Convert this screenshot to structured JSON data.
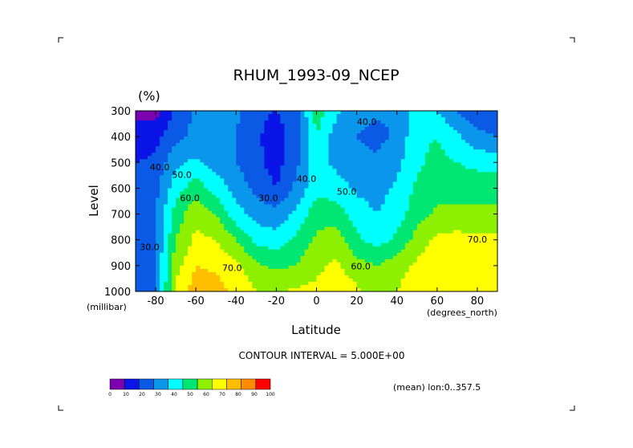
{
  "chart_data": {
    "type": "heatmap",
    "subtype": "filled-contour",
    "title": "RHUM_1993-09_NCEP",
    "units": "(%)",
    "xlabel": "Latitude",
    "x_units": "(degrees_north)",
    "ylabel": "Level",
    "y_units": "(millibar)",
    "xlim": [
      -90,
      90
    ],
    "ylim": [
      300,
      1000
    ],
    "y_inverted": true,
    "x_ticks": [
      -80,
      -60,
      -40,
      -20,
      0,
      20,
      40,
      60,
      80
    ],
    "y_ticks": [
      300,
      400,
      500,
      600,
      700,
      800,
      900,
      1000
    ],
    "contour_interval_text": "CONTOUR INTERVAL = 5.000E+00",
    "annotation": "(mean) lon:0..357.5",
    "colorbar": {
      "ticks": [
        0,
        10,
        20,
        30,
        40,
        50,
        60,
        70,
        80,
        90,
        100
      ],
      "colors": [
        "#7a00b0",
        "#0a14e6",
        "#0a5ae6",
        "#0a96eb",
        "#00ffff",
        "#00e673",
        "#8cf000",
        "#ffff00",
        "#ffbe00",
        "#ff8c00",
        "#ff0000"
      ]
    },
    "contour_labels": [
      {
        "value": "40.0",
        "lat": -78,
        "lev": 530
      },
      {
        "value": "50.0",
        "lat": -67,
        "lev": 560
      },
      {
        "value": "60.0",
        "lat": -63,
        "lev": 650
      },
      {
        "value": "30.0",
        "lat": -83,
        "lev": 840
      },
      {
        "value": "70.0",
        "lat": -42,
        "lev": 920
      },
      {
        "value": "30.0",
        "lat": -24,
        "lev": 650
      },
      {
        "value": "40.0",
        "lat": -5,
        "lev": 575
      },
      {
        "value": "50.0",
        "lat": 15,
        "lev": 625
      },
      {
        "value": "40.0",
        "lat": 25,
        "lev": 355
      },
      {
        "value": "60.0",
        "lat": 22,
        "lev": 915
      },
      {
        "value": "70.0",
        "lat": 80,
        "lev": 810
      }
    ],
    "grid_lat": [
      -90,
      -80,
      -70,
      -60,
      -50,
      -40,
      -30,
      -20,
      -10,
      0,
      10,
      20,
      30,
      40,
      50,
      60,
      70,
      80,
      90
    ],
    "grid_lev": [
      300,
      400,
      500,
      600,
      700,
      800,
      900,
      1000
    ],
    "values": [
      [
        8,
        5,
        22,
        32,
        40,
        32,
        22,
        20,
        27,
        55,
        42,
        32,
        32,
        30,
        48,
        40,
        30,
        22,
        20
      ],
      [
        14,
        17,
        27,
        33,
        38,
        30,
        22,
        15,
        25,
        50,
        35,
        30,
        27,
        32,
        48,
        50,
        42,
        33,
        30
      ],
      [
        20,
        22,
        38,
        42,
        36,
        30,
        22,
        16,
        28,
        45,
        37,
        32,
        32,
        37,
        48,
        53,
        50,
        47,
        46
      ],
      [
        23,
        27,
        46,
        55,
        46,
        36,
        27,
        20,
        32,
        47,
        45,
        38,
        36,
        42,
        52,
        56,
        56,
        56,
        56
      ],
      [
        26,
        30,
        54,
        68,
        60,
        44,
        36,
        33,
        43,
        56,
        55,
        45,
        40,
        45,
        56,
        62,
        62,
        62,
        62
      ],
      [
        28,
        30,
        60,
        72,
        70,
        60,
        47,
        44,
        52,
        62,
        66,
        52,
        46,
        52,
        64,
        72,
        74,
        72,
        72
      ],
      [
        28,
        30,
        66,
        80,
        78,
        72,
        62,
        58,
        60,
        68,
        72,
        64,
        60,
        66,
        72,
        78,
        78,
        76,
        78
      ],
      [
        30,
        30,
        72,
        86,
        84,
        78,
        70,
        68,
        72,
        72,
        76,
        72,
        66,
        70,
        76,
        80,
        80,
        76,
        74
      ]
    ]
  }
}
